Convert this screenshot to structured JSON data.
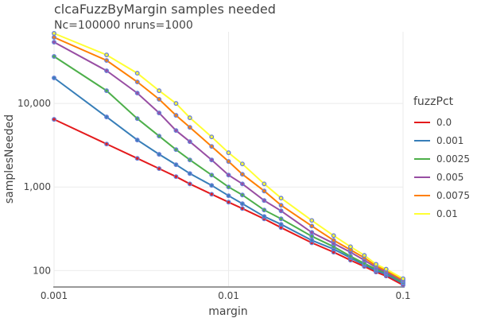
{
  "chart_data": {
    "type": "line",
    "title": "clcaFuzzByMargin samples needed",
    "subtitle": "Nc=100000 nruns=1000",
    "xlabel": "margin",
    "ylabel": "samplesNeeded",
    "x_scale": "log",
    "y_scale": "log",
    "xlim": [
      0.001,
      0.1
    ],
    "ylim": [
      65,
      72000
    ],
    "x_ticks": [
      {
        "value": 0.001,
        "label": "0.001"
      },
      {
        "value": 0.01,
        "label": "0.01"
      },
      {
        "value": 0.1,
        "label": "0.1"
      }
    ],
    "y_ticks": [
      {
        "value": 100,
        "label": "100"
      },
      {
        "value": 1000,
        "label": "1,000"
      },
      {
        "value": 10000,
        "label": "10,000"
      }
    ],
    "grid": true,
    "legend_title": "fuzzPct",
    "legend_position": "right",
    "marker_color": "#6a80d8",
    "x": [
      0.001,
      0.002,
      0.003,
      0.004,
      0.005,
      0.006,
      0.008,
      0.01,
      0.012,
      0.016,
      0.02,
      0.03,
      0.04,
      0.05,
      0.06,
      0.07,
      0.08,
      0.1
    ],
    "series": [
      {
        "name": "0.0",
        "color": "#e41a1c",
        "values": [
          6450,
          3270,
          2200,
          1660,
          1330,
          1090,
          820,
          659,
          553,
          416,
          327,
          215,
          166,
          133,
          112,
          96,
          86,
          67
        ]
      },
      {
        "name": "0.001",
        "color": "#377eb8",
        "values": [
          20200,
          6890,
          3650,
          2460,
          1850,
          1450,
          1045,
          786,
          631,
          444,
          357,
          230,
          181,
          142,
          117,
          100,
          90,
          70
        ]
      },
      {
        "name": "0.0025",
        "color": "#4daf4a",
        "values": [
          36500,
          14200,
          6590,
          4070,
          2800,
          2110,
          1390,
          1000,
          803,
          530,
          416,
          257,
          193,
          148,
          122,
          104,
          94,
          72
        ]
      },
      {
        "name": "0.005",
        "color": "#984ea3",
        "values": [
          54100,
          24600,
          13300,
          7690,
          4740,
          3490,
          2110,
          1390,
          1090,
          689,
          518,
          286,
          211,
          166,
          133,
          109,
          96,
          75
        ]
      },
      {
        "name": "0.0075",
        "color": "#ff7f00",
        "values": [
          61700,
          32700,
          18100,
          11200,
          7200,
          5180,
          3060,
          2020,
          1420,
          896,
          604,
          341,
          230,
          177,
          142,
          114,
          100,
          77
        ]
      },
      {
        "name": "0.01",
        "color": "#ffff33",
        "values": [
          68900,
          38100,
          23000,
          14200,
          10000,
          6740,
          3980,
          2570,
          1890,
          1090,
          736,
          398,
          262,
          193,
          152,
          119,
          104,
          80
        ]
      }
    ]
  }
}
